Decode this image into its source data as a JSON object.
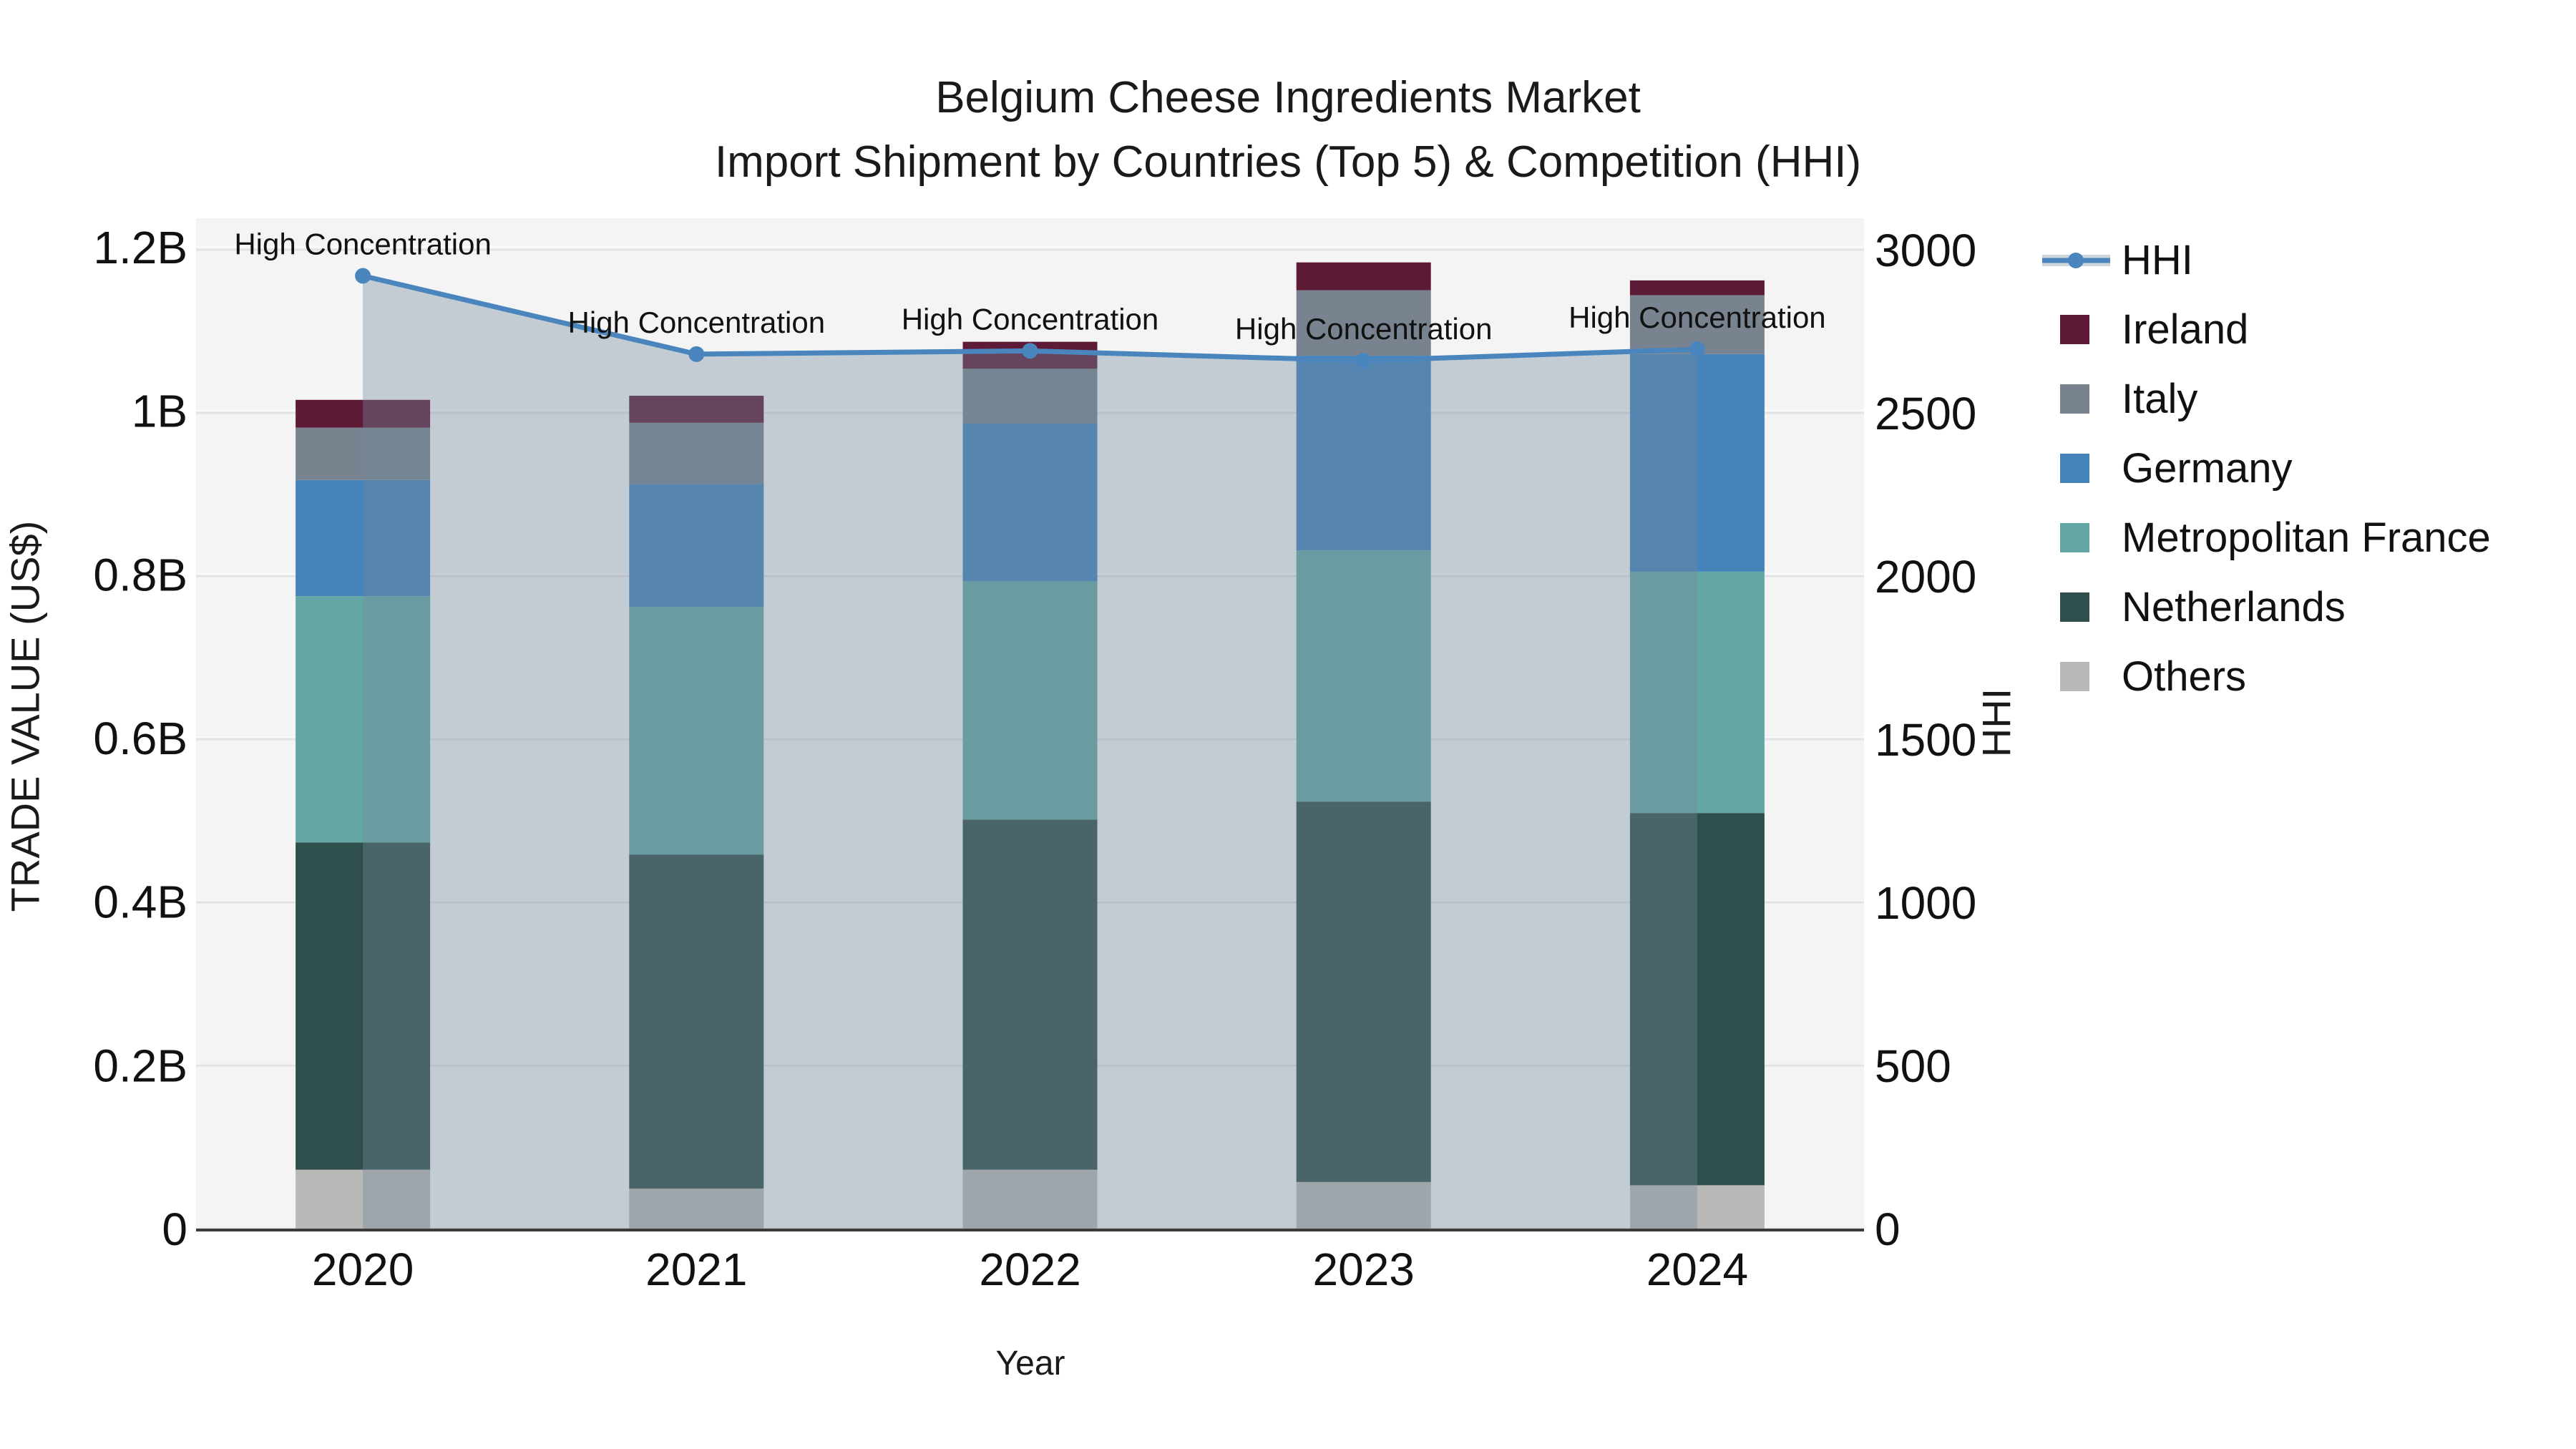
{
  "title": {
    "line1": "Belgium Cheese Ingredients Market",
    "line2": "Import Shipment by Countries (Top 5) & Competition (HHI)"
  },
  "axes": {
    "x_label": "Year",
    "y_left_label": "TRADE VALUE (US$)",
    "y_right_label": "HHI",
    "y_left_ticks": [
      "0",
      "0.2B",
      "0.4B",
      "0.6B",
      "0.8B",
      "1B",
      "1.2B"
    ],
    "y_right_ticks": [
      "0",
      "500",
      "1000",
      "1500",
      "2000",
      "2500",
      "3000"
    ]
  },
  "chart_data": {
    "type": "bar",
    "subtype": "stacked-bars-with-hhi-line-and-area",
    "title": "Belgium Cheese Ingredients Market\nImport Shipment by Countries (Top 5) & Competition (HHI)",
    "xlabel": "Year",
    "ylabel_left": "TRADE VALUE (US$)",
    "ylabel_right": "HHI",
    "x": [
      2020,
      2021,
      2022,
      2023,
      2024
    ],
    "ylim_left_billions": [
      0,
      1.2
    ],
    "ylim_right": [
      0,
      3000
    ],
    "grid": true,
    "plot_bg": "#f4f4f5",
    "grid_color_left": "#fafafa",
    "grid_color_right": "#e2e3e5",
    "bar_series": [
      {
        "name": "Others",
        "color": "#b8b9b6",
        "values_B": [
          0.072,
          0.049,
          0.072,
          0.057,
          0.053
        ]
      },
      {
        "name": "Netherlands",
        "color": "#2f4f4c",
        "values_B": [
          0.4,
          0.408,
          0.428,
          0.465,
          0.455
        ]
      },
      {
        "name": "Metropolitan France",
        "color": "#63a7a5",
        "values_B": [
          0.301,
          0.303,
          0.291,
          0.307,
          0.295
        ]
      },
      {
        "name": "Germany",
        "color": "#4583bb",
        "values_B": [
          0.142,
          0.15,
          0.193,
          0.238,
          0.266
        ]
      },
      {
        "name": "Italy",
        "color": "#78838f",
        "values_B": [
          0.064,
          0.075,
          0.067,
          0.08,
          0.072
        ]
      },
      {
        "name": "Ireland",
        "color": "#5e1b38",
        "values_B": [
          0.034,
          0.033,
          0.033,
          0.034,
          0.018
        ]
      }
    ],
    "bar_totals_B": [
      1.013,
      1.018,
      1.084,
      1.181,
      1.159
    ],
    "line_series": {
      "name": "HHI",
      "color": "#4a86bd",
      "area_fill": "rgba(116,138,155,0.38)",
      "values": [
        2920,
        2680,
        2690,
        2660,
        2695
      ]
    },
    "annotation_text": "High Concentration",
    "legend_order": [
      "HHI",
      "Ireland",
      "Italy",
      "Germany",
      "Metropolitan France",
      "Netherlands",
      "Others"
    ],
    "legend_position": "right-outside",
    "legend_hhi_band_color": "#cdd5db"
  }
}
